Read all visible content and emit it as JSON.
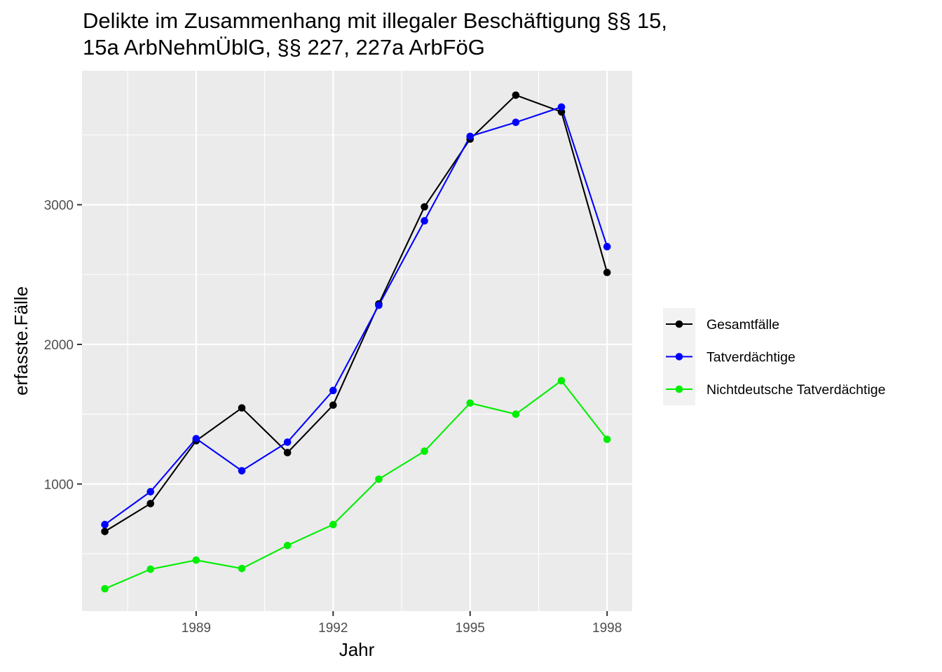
{
  "chart_data": {
    "type": "line",
    "title_lines": [
      "Delikte im Zusammenhang mit illegaler Beschäftigung §§ 15,",
      "15a ArbNehmÜblG, §§ 227, 227a ArbFöG"
    ],
    "xlabel": "Jahr",
    "ylabel": "erfasste.Fälle",
    "x": [
      1987,
      1988,
      1989,
      1990,
      1991,
      1992,
      1993,
      1994,
      1995,
      1996,
      1997,
      1998
    ],
    "xlim": [
      1986.5,
      1998.55
    ],
    "ylim": [
      90,
      3960
    ],
    "x_ticks": [
      1989,
      1992,
      1995,
      1998
    ],
    "y_ticks": [
      1000,
      2000,
      3000
    ],
    "grid": true,
    "legend_position": "right",
    "series": [
      {
        "name": "Gesamtfälle",
        "color": "#000000",
        "values": [
          660,
          860,
          1310,
          1545,
          1225,
          1565,
          2290,
          2985,
          3470,
          3785,
          3665,
          2515
        ]
      },
      {
        "name": "Tatverdächtige",
        "color": "#0000ff",
        "values": [
          710,
          945,
          1325,
          1095,
          1300,
          1670,
          2280,
          2885,
          3490,
          3590,
          3700,
          2700
        ]
      },
      {
        "name": "Nichtdeutsche Tatverdächtige",
        "color": "#00ee00",
        "values": [
          250,
          390,
          455,
          395,
          560,
          710,
          1035,
          1235,
          1580,
          1500,
          1740,
          1320
        ]
      }
    ]
  }
}
